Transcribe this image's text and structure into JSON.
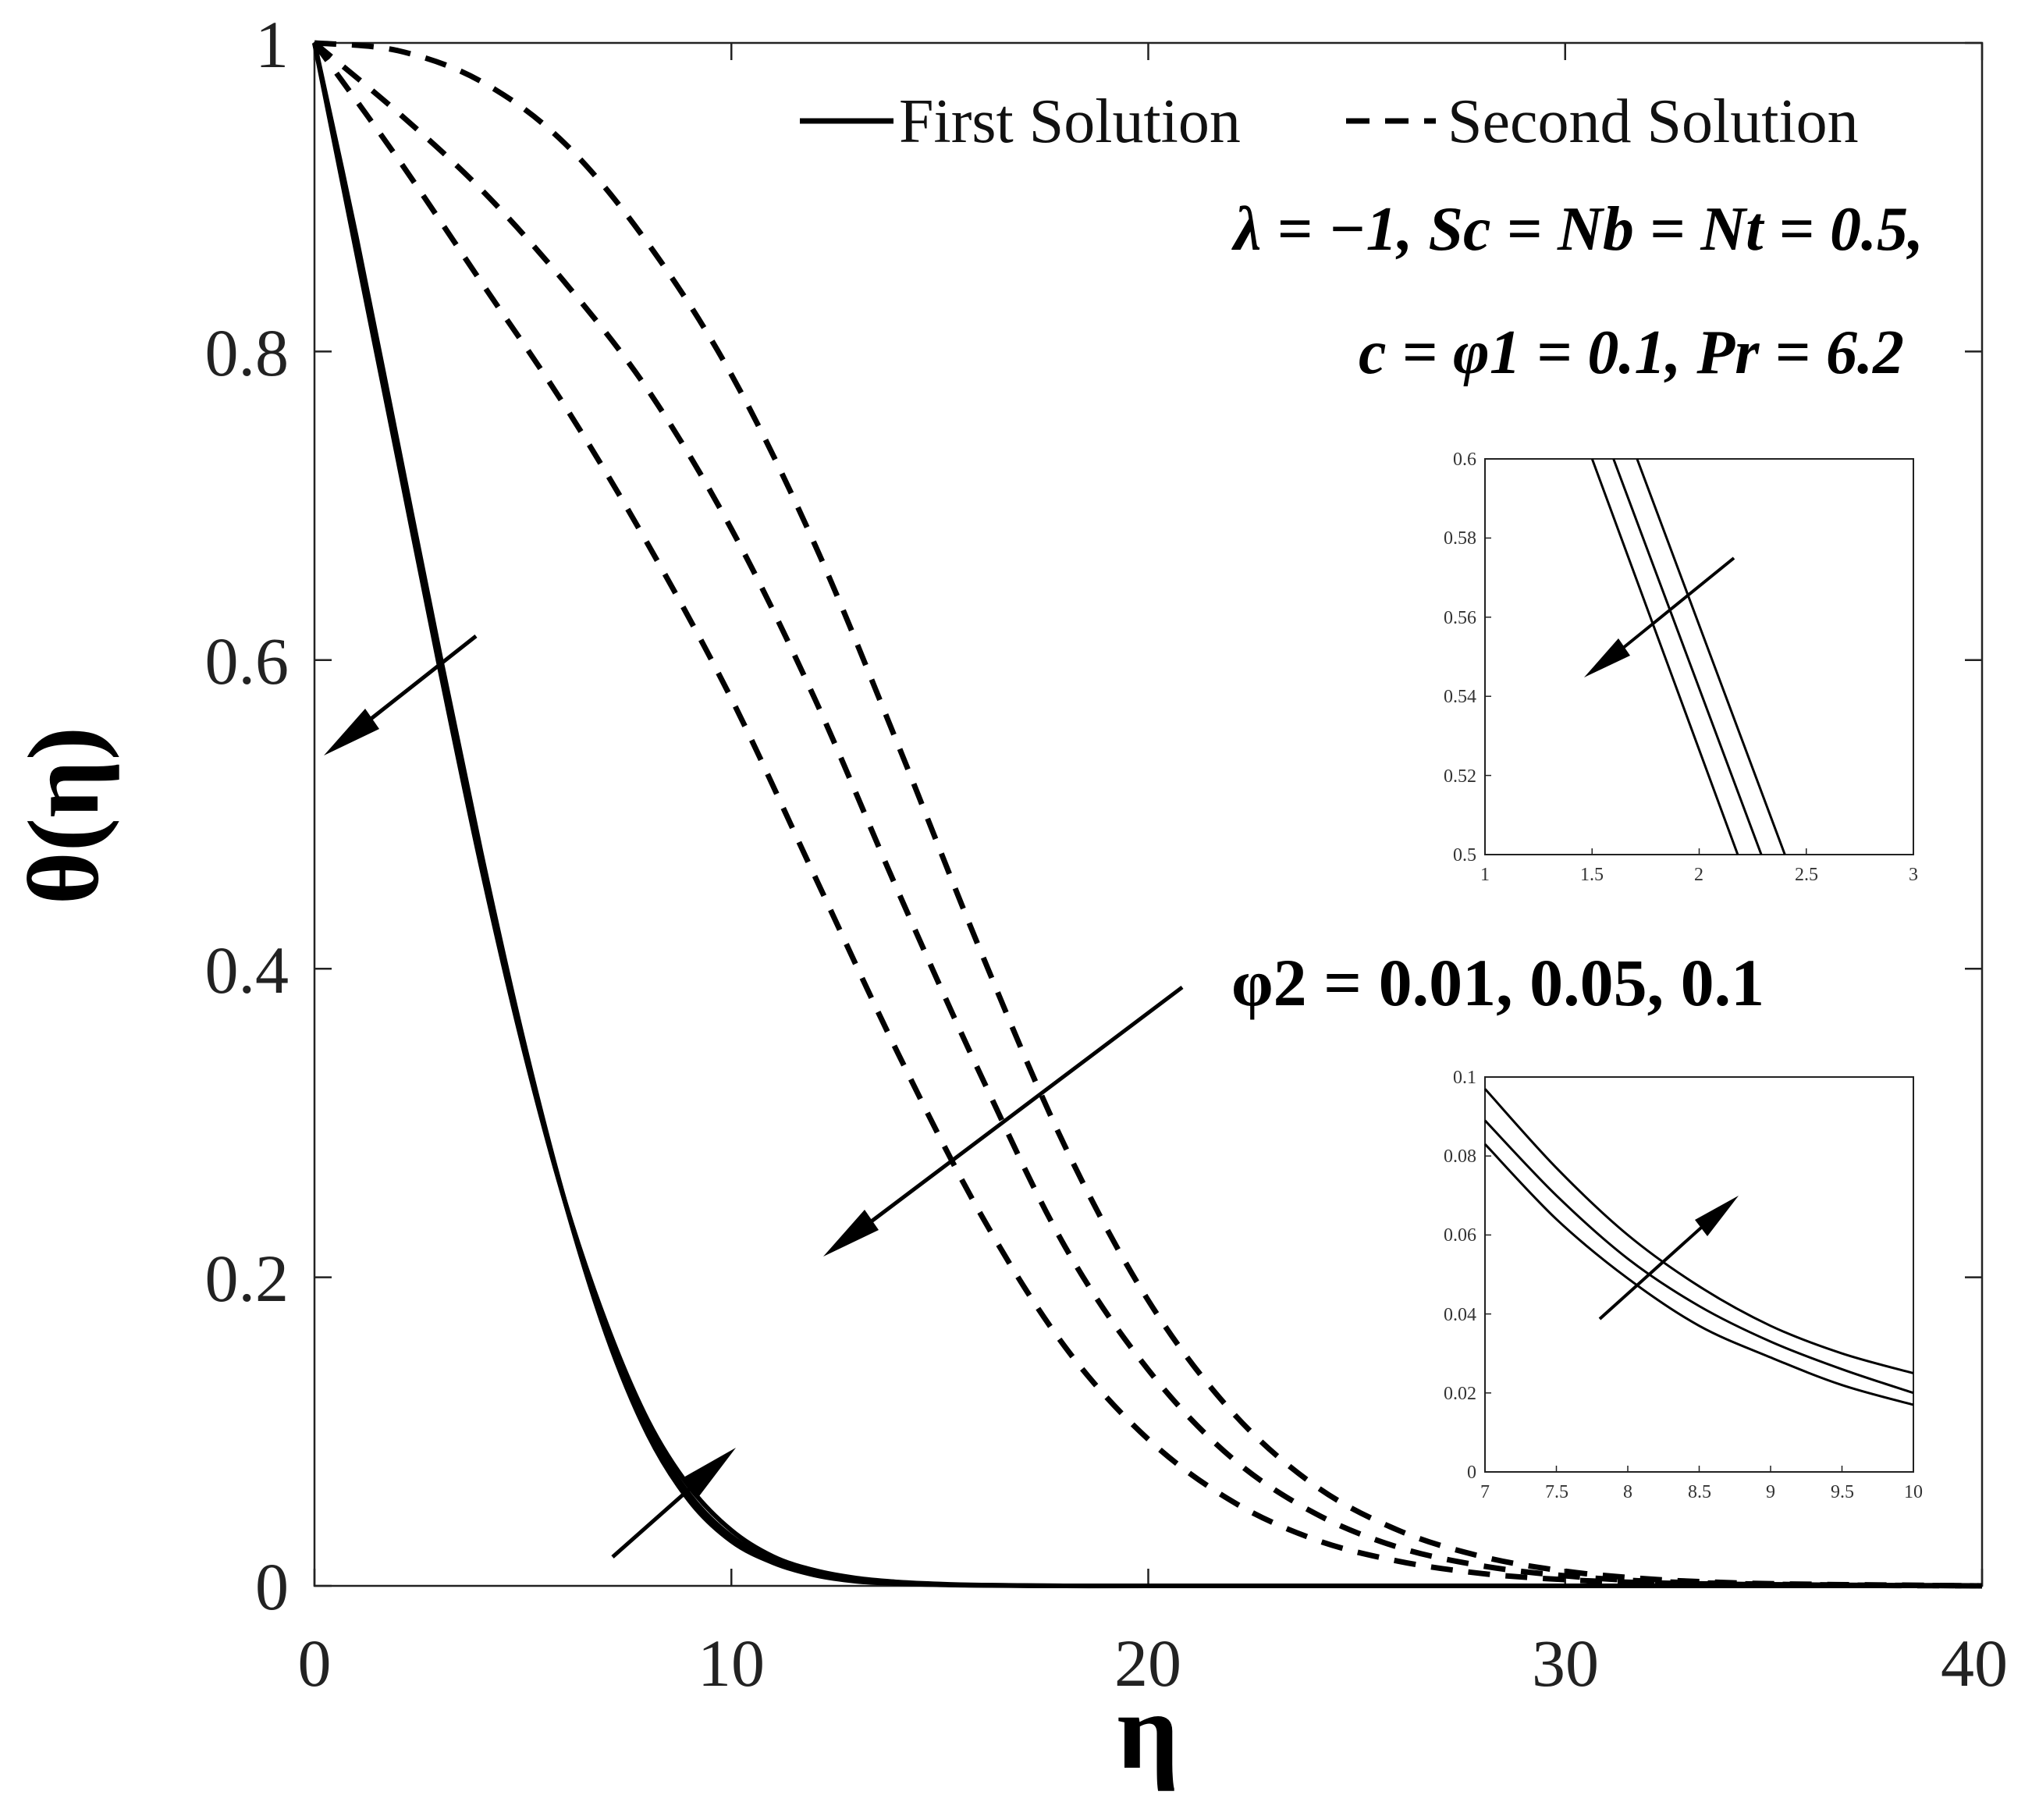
{
  "chart_data": {
    "type": "line",
    "xlabel": "η",
    "ylabel": "θ(η)",
    "xlim": [
      0,
      40
    ],
    "ylim": [
      0,
      1
    ],
    "xticks": [
      "0",
      "10",
      "20",
      "30",
      "40"
    ],
    "yticks": [
      "0",
      "0.2",
      "0.4",
      "0.6",
      "0.8",
      "1"
    ],
    "legend": {
      "position": "top-right",
      "entries": [
        {
          "label": "First Solution",
          "style": "solid"
        },
        {
          "label": "Second Solution",
          "style": "dashed"
        }
      ]
    },
    "annotations": {
      "params_line1": "λ = −1, Sc = Nb = Nt = 0.5,",
      "params_line2": "c = φ1 = 0.1, Pr = 6.2",
      "phi2_label": "φ2 = 0.01, 0.05, 0.1"
    },
    "series": [
      {
        "name": "First Solution, φ2 = 0.01",
        "style": "solid",
        "x": [
          0,
          1,
          2,
          3,
          4,
          5,
          6,
          7,
          8,
          9,
          10,
          11,
          12,
          13,
          14,
          15,
          16,
          18,
          20,
          25,
          30,
          40
        ],
        "y": [
          1,
          0.875,
          0.74,
          0.605,
          0.475,
          0.355,
          0.25,
          0.163,
          0.098,
          0.055,
          0.029,
          0.015,
          0.007,
          0.003,
          0.0015,
          0.0007,
          0.0003,
          0,
          0,
          0,
          0,
          0
        ]
      },
      {
        "name": "First Solution, φ2 = 0.05",
        "style": "solid",
        "x": [
          0,
          1,
          2,
          3,
          4,
          5,
          6,
          7,
          8,
          9,
          10,
          11,
          12,
          13,
          14,
          15,
          16,
          18,
          20,
          25,
          30,
          40
        ],
        "y": [
          1,
          0.87,
          0.735,
          0.6,
          0.47,
          0.352,
          0.25,
          0.166,
          0.102,
          0.059,
          0.032,
          0.017,
          0.008,
          0.004,
          0.002,
          0.0009,
          0.0004,
          0,
          0,
          0,
          0,
          0
        ]
      },
      {
        "name": "First Solution, φ2 = 0.1",
        "style": "solid",
        "x": [
          0,
          1,
          2,
          3,
          4,
          5,
          6,
          7,
          8,
          9,
          10,
          11,
          12,
          13,
          14,
          15,
          16,
          18,
          20,
          25,
          30,
          40
        ],
        "y": [
          1,
          0.865,
          0.73,
          0.595,
          0.466,
          0.35,
          0.25,
          0.17,
          0.107,
          0.064,
          0.036,
          0.019,
          0.01,
          0.005,
          0.0025,
          0.0012,
          0.0005,
          0,
          0,
          0,
          0,
          0
        ]
      },
      {
        "name": "Second Solution, φ2 = 0.1",
        "style": "dashed",
        "x": [
          0,
          2,
          4,
          6,
          8,
          10,
          12,
          14,
          16,
          18,
          20,
          22,
          24,
          26,
          28,
          30,
          32,
          34,
          36,
          38,
          40
        ],
        "y": [
          1,
          0.925,
          0.845,
          0.765,
          0.675,
          0.575,
          0.46,
          0.345,
          0.24,
          0.155,
          0.095,
          0.055,
          0.03,
          0.016,
          0.008,
          0.004,
          0.002,
          0.001,
          0.0005,
          0.0002,
          0
        ]
      },
      {
        "name": "Second Solution, φ2 = 0.05",
        "style": "dashed",
        "x": [
          0,
          2,
          4,
          6,
          8,
          10,
          12,
          14,
          16,
          18,
          20,
          22,
          24,
          26,
          28,
          30,
          32,
          34,
          36,
          38,
          40
        ],
        "y": [
          1,
          0.955,
          0.905,
          0.845,
          0.775,
          0.685,
          0.575,
          0.45,
          0.33,
          0.22,
          0.14,
          0.083,
          0.047,
          0.025,
          0.013,
          0.0065,
          0.003,
          0.0015,
          0.0007,
          0.0003,
          0
        ]
      },
      {
        "name": "Second Solution, φ2 = 0.01",
        "style": "dashed",
        "x": [
          0,
          2,
          4,
          6,
          8,
          10,
          12,
          14,
          16,
          18,
          20,
          22,
          24,
          26,
          28,
          30,
          32,
          34,
          36,
          38,
          40
        ],
        "y": [
          1,
          0.995,
          0.975,
          0.935,
          0.87,
          0.785,
          0.675,
          0.545,
          0.41,
          0.285,
          0.185,
          0.113,
          0.065,
          0.036,
          0.019,
          0.0095,
          0.0045,
          0.002,
          0.001,
          0.0005,
          0
        ]
      }
    ],
    "insets": [
      {
        "xlim": [
          1,
          3
        ],
        "ylim": [
          0.5,
          0.6
        ],
        "xticks": [
          "1",
          "1.5",
          "2",
          "2.5",
          "3"
        ],
        "yticks": [
          "0.5",
          "0.52",
          "0.54",
          "0.56",
          "0.58",
          "0.6"
        ],
        "series": [
          {
            "x": [
              1.5,
              2.18
            ],
            "y": [
              0.6,
              0.5
            ]
          },
          {
            "x": [
              1.6,
              2.29
            ],
            "y": [
              0.6,
              0.5
            ]
          },
          {
            "x": [
              1.71,
              2.4
            ],
            "y": [
              0.6,
              0.5
            ]
          }
        ]
      },
      {
        "xlim": [
          7,
          10
        ],
        "ylim": [
          0,
          0.1
        ],
        "xticks": [
          "7",
          "7.5",
          "8",
          "8.5",
          "9",
          "9.5",
          "10"
        ],
        "yticks": [
          "0",
          "0.02",
          "0.04",
          "0.06",
          "0.08",
          "0.1"
        ],
        "series": [
          {
            "x": [
              7,
              7.5,
              8,
              8.5,
              9,
              9.5,
              10
            ],
            "y": [
              0.083,
              0.064,
              0.049,
              0.037,
              0.029,
              0.022,
              0.017
            ]
          },
          {
            "x": [
              7,
              7.5,
              8,
              8.5,
              9,
              9.5,
              10
            ],
            "y": [
              0.089,
              0.07,
              0.054,
              0.042,
              0.033,
              0.026,
              0.02
            ]
          },
          {
            "x": [
              7,
              7.5,
              8,
              8.5,
              9,
              9.5,
              10
            ],
            "y": [
              0.097,
              0.077,
              0.06,
              0.047,
              0.037,
              0.03,
              0.025
            ]
          }
        ]
      }
    ]
  }
}
